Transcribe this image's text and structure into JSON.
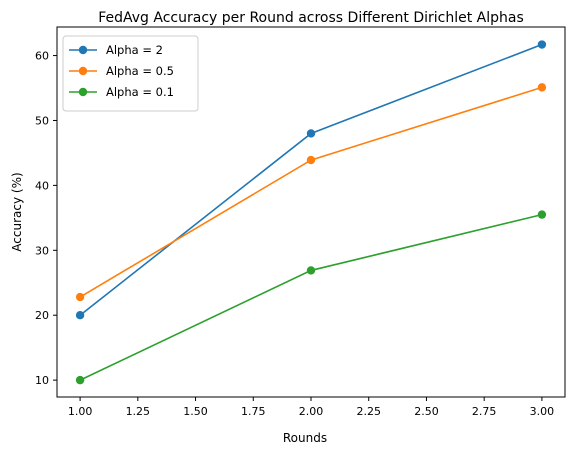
{
  "chart_data": {
    "type": "line",
    "title": "FedAvg Accuracy per Round across Different Dirichlet Alphas",
    "xlabel": "Rounds",
    "ylabel": "Accuracy (%)",
    "x": [
      1,
      2,
      3
    ],
    "xlim": [
      0.9,
      3.1
    ],
    "ylim": [
      7.4,
      64.4
    ],
    "xticks": [
      "1.00",
      "1.25",
      "1.50",
      "1.75",
      "2.00",
      "2.25",
      "2.50",
      "2.75",
      "3.00"
    ],
    "xtick_values": [
      1.0,
      1.25,
      1.5,
      1.75,
      2.0,
      2.25,
      2.5,
      2.75,
      3.0
    ],
    "yticks": [
      "10",
      "20",
      "30",
      "40",
      "50",
      "60"
    ],
    "ytick_values": [
      10,
      20,
      30,
      40,
      50,
      60
    ],
    "grid": false,
    "legend_position": "top-left",
    "series": [
      {
        "name": "Alpha = 2",
        "color": "#1f77b4",
        "values": [
          20.0,
          48.0,
          61.7
        ]
      },
      {
        "name": "Alpha = 0.5",
        "color": "#ff7f0e",
        "values": [
          22.8,
          43.9,
          55.1
        ]
      },
      {
        "name": "Alpha = 0.1",
        "color": "#2ca02c",
        "values": [
          10.0,
          26.9,
          35.5
        ]
      }
    ]
  }
}
